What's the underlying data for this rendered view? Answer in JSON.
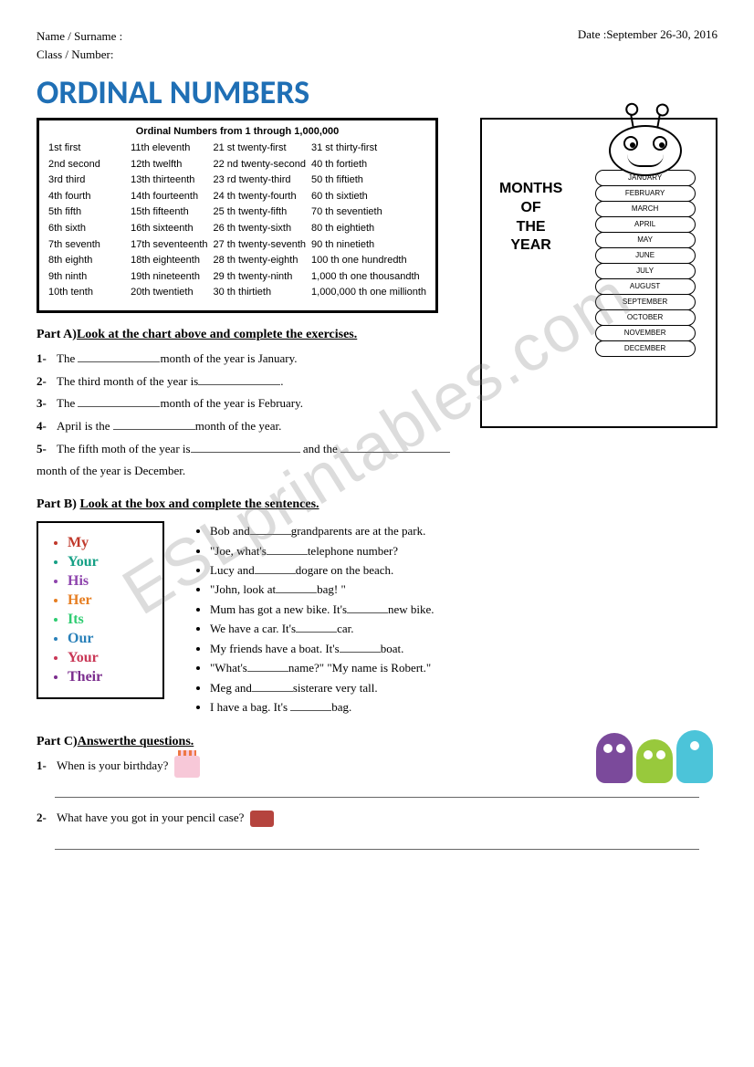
{
  "header": {
    "name_label": "Name / Surname :",
    "class_label": "Class / Number:",
    "date_label": "Date :",
    "date_value": "September 26-30, 2016"
  },
  "title": "ORDINAL NUMBERS",
  "watermark": "ESLprintables.com",
  "chart": {
    "title": "Ordinal Numbers from 1 through 1,000,000",
    "col1": [
      "1st first",
      "2nd second",
      "3rd third",
      "4th fourth",
      "5th fifth",
      "6th sixth",
      "7th seventh",
      "8th eighth",
      "9th ninth",
      "10th tenth"
    ],
    "col2": [
      "11th eleventh",
      "12th twelfth",
      "13th thirteenth",
      "14th fourteenth",
      "15th fifteenth",
      "16th sixteenth",
      "17th seventeenth",
      "18th eighteenth",
      "19th nineteenth",
      "20th twentieth"
    ],
    "col3": [
      "21 st twenty-first",
      "22 nd twenty-second",
      "23 rd twenty-third",
      "24 th twenty-fourth",
      "25 th twenty-fifth",
      "26 th twenty-sixth",
      "27 th twenty-seventh",
      "28 th twenty-eighth",
      "29 th twenty-ninth",
      "30 th thirtieth"
    ],
    "col4": [
      "31 st thirty-first",
      "40 th fortieth",
      "50 th fiftieth",
      "60 th sixtieth",
      "70 th seventieth",
      "80 th eightieth",
      "90 th ninetieth",
      "100 th one hundredth",
      "1,000 th one thousandth",
      "1,000,000 th one millionth"
    ]
  },
  "months": {
    "title_line1": "MONTHS",
    "title_line2": "OF",
    "title_line3": "THE",
    "title_line4": "YEAR",
    "list": [
      "JANUARY",
      "FEBRUARY",
      "MARCH",
      "APRIL",
      "MAY",
      "JUNE",
      "JULY",
      "AUGUST",
      "SEPTEMBER",
      "OCTOBER",
      "NOVEMBER",
      "DECEMBER"
    ]
  },
  "partA": {
    "heading_prefix": "Part A)",
    "heading": "Look at the chart above and complete the exercises.",
    "items": {
      "1a": "The ",
      "1b": "month of the year is January.",
      "2": "The third month of the year is",
      "3a": "The ",
      "3b": "month of the year is February.",
      "4a": "April is the ",
      "4b": "month of the year.",
      "5a": "The fifth moth of the year is",
      "5b": " and the ",
      "5c": " month of the year is December."
    }
  },
  "partB": {
    "heading_prefix": "Part B) ",
    "heading": "Look at the box and complete the sentences.",
    "pronouns": [
      "My",
      "Your",
      "His",
      "Her",
      "Its",
      "Our",
      "Your",
      "Their"
    ],
    "pronoun_colors": [
      "#c0392b",
      "#16a085",
      "#8e44ad",
      "#e67e22",
      "#2ecc71",
      "#2980b9",
      "#c93756",
      "#7b2d8e"
    ],
    "sentences": [
      "Bob and______grandparents are at the park.",
      "\"Joe, what's______telephone number?",
      "Lucy and______dogare on the beach.",
      "\"John, look at______bag! \"",
      "Mum has got a new bike. It's______new bike.",
      "We have a car. It's______car.",
      "My friends have a boat. It's______boat.",
      "\"What's______name?\" \"My name is Robert.\"",
      "Meg and______sisterare very tall.",
      "I have a bag. It's ______bag."
    ]
  },
  "partC": {
    "heading_prefix": "Part C)",
    "heading": "Answerthe questions.",
    "q1_num": "1- ",
    "q1": "When is your birthday?",
    "q2_num": "2- ",
    "q2": "What have you got in your pencil case?"
  }
}
